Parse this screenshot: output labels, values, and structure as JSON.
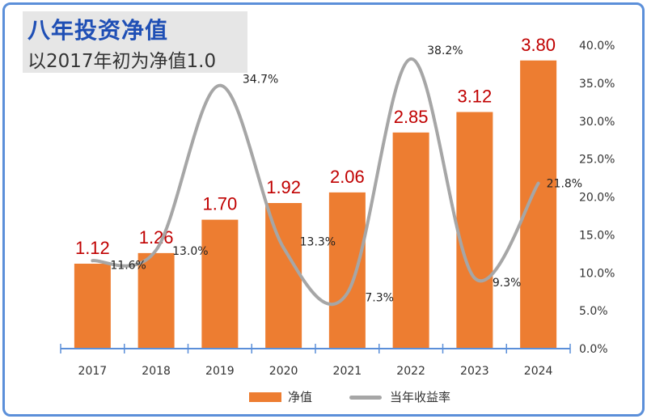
{
  "title": "八年投资净值",
  "subtitle": "以2017年初为净值1.0",
  "chart_data": {
    "type": "bar+line",
    "categories": [
      "2017",
      "2018",
      "2019",
      "2020",
      "2021",
      "2022",
      "2023",
      "2024"
    ],
    "series": [
      {
        "name": "净值",
        "kind": "bar",
        "color": "#ed7d31",
        "values": [
          1.12,
          1.26,
          1.7,
          1.92,
          2.06,
          2.85,
          3.12,
          3.8
        ],
        "labels": [
          "1.12",
          "1.26",
          "1.70",
          "1.92",
          "2.06",
          "2.85",
          "3.12",
          "3.80"
        ]
      },
      {
        "name": "当年收益率",
        "kind": "line",
        "color": "#a6a6a6",
        "axis": "right",
        "smooth": true,
        "values": [
          11.6,
          13.0,
          34.7,
          13.3,
          7.3,
          38.2,
          9.3,
          21.8
        ],
        "labels": [
          "11.6%",
          "13.0%",
          "34.7%",
          "13.3%",
          "7.3%",
          "38.2%",
          "9.3%",
          "21.8%"
        ]
      }
    ],
    "bar_axis_max": 4.0,
    "right_axis": {
      "min": 0,
      "max": 40,
      "step": 5,
      "tick_labels": [
        "0.0%",
        "5.0%",
        "10.0%",
        "15.0%",
        "20.0%",
        "25.0%",
        "30.0%",
        "35.0%",
        "40.0%"
      ]
    },
    "legend_position": "bottom"
  }
}
